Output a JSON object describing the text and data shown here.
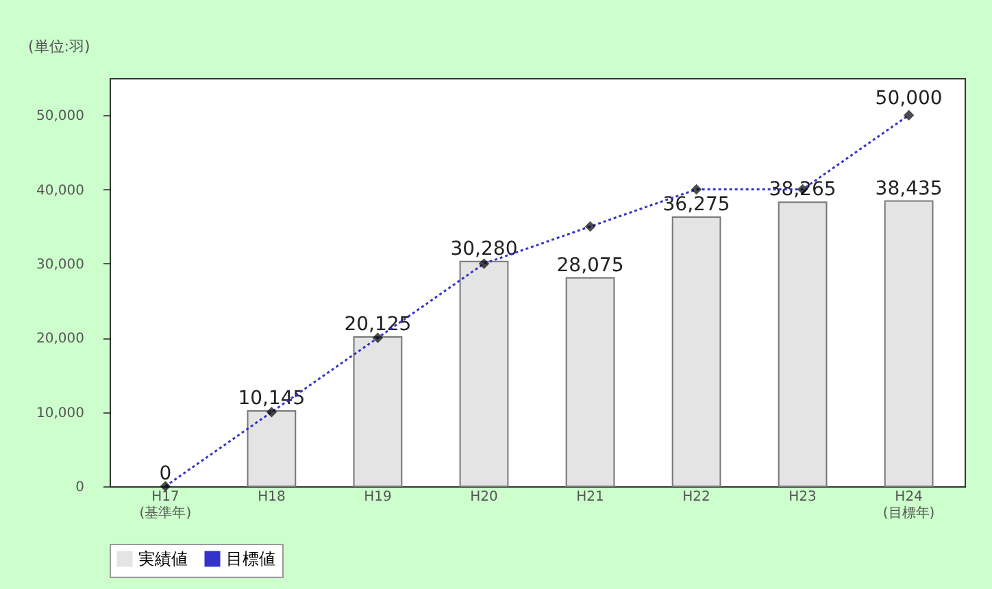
{
  "chart_data": {
    "type": "bar",
    "ylabel": "(単位:羽)",
    "categories": [
      "H17 (基準年)",
      "H18",
      "H19",
      "H20",
      "H21",
      "H22",
      "H23",
      "H24 (目標年)"
    ],
    "series": [
      {
        "name": "実績値",
        "color": "#e4e4e4",
        "values": [
          0,
          10145,
          20125,
          30280,
          28075,
          36275,
          38265,
          38435
        ],
        "value_labels": [
          "0",
          "10,145",
          "20,125",
          "30,280",
          "28,075",
          "36,275",
          "38,265",
          "38,435"
        ]
      },
      {
        "name": "目標値",
        "type": "line",
        "color": "#3333cc",
        "marker": "diamond",
        "line_style": "dotted",
        "values": [
          0,
          10000,
          20000,
          30000,
          35000,
          40000,
          40000,
          50000
        ],
        "value_labels": [
          null,
          null,
          null,
          null,
          null,
          null,
          null,
          "50,000"
        ]
      }
    ],
    "ylim": [
      0,
      55000
    ],
    "yticks": [
      0,
      {
        "value": 10000,
        "label": "10,000"
      },
      {
        "value": 20000,
        "label": "20,000"
      },
      {
        "value": 30000,
        "label": "30,000"
      },
      {
        "value": 40000,
        "label": "40,000"
      },
      {
        "value": 50000,
        "label": "50,000"
      }
    ],
    "grid": false,
    "legend": "bottom"
  }
}
